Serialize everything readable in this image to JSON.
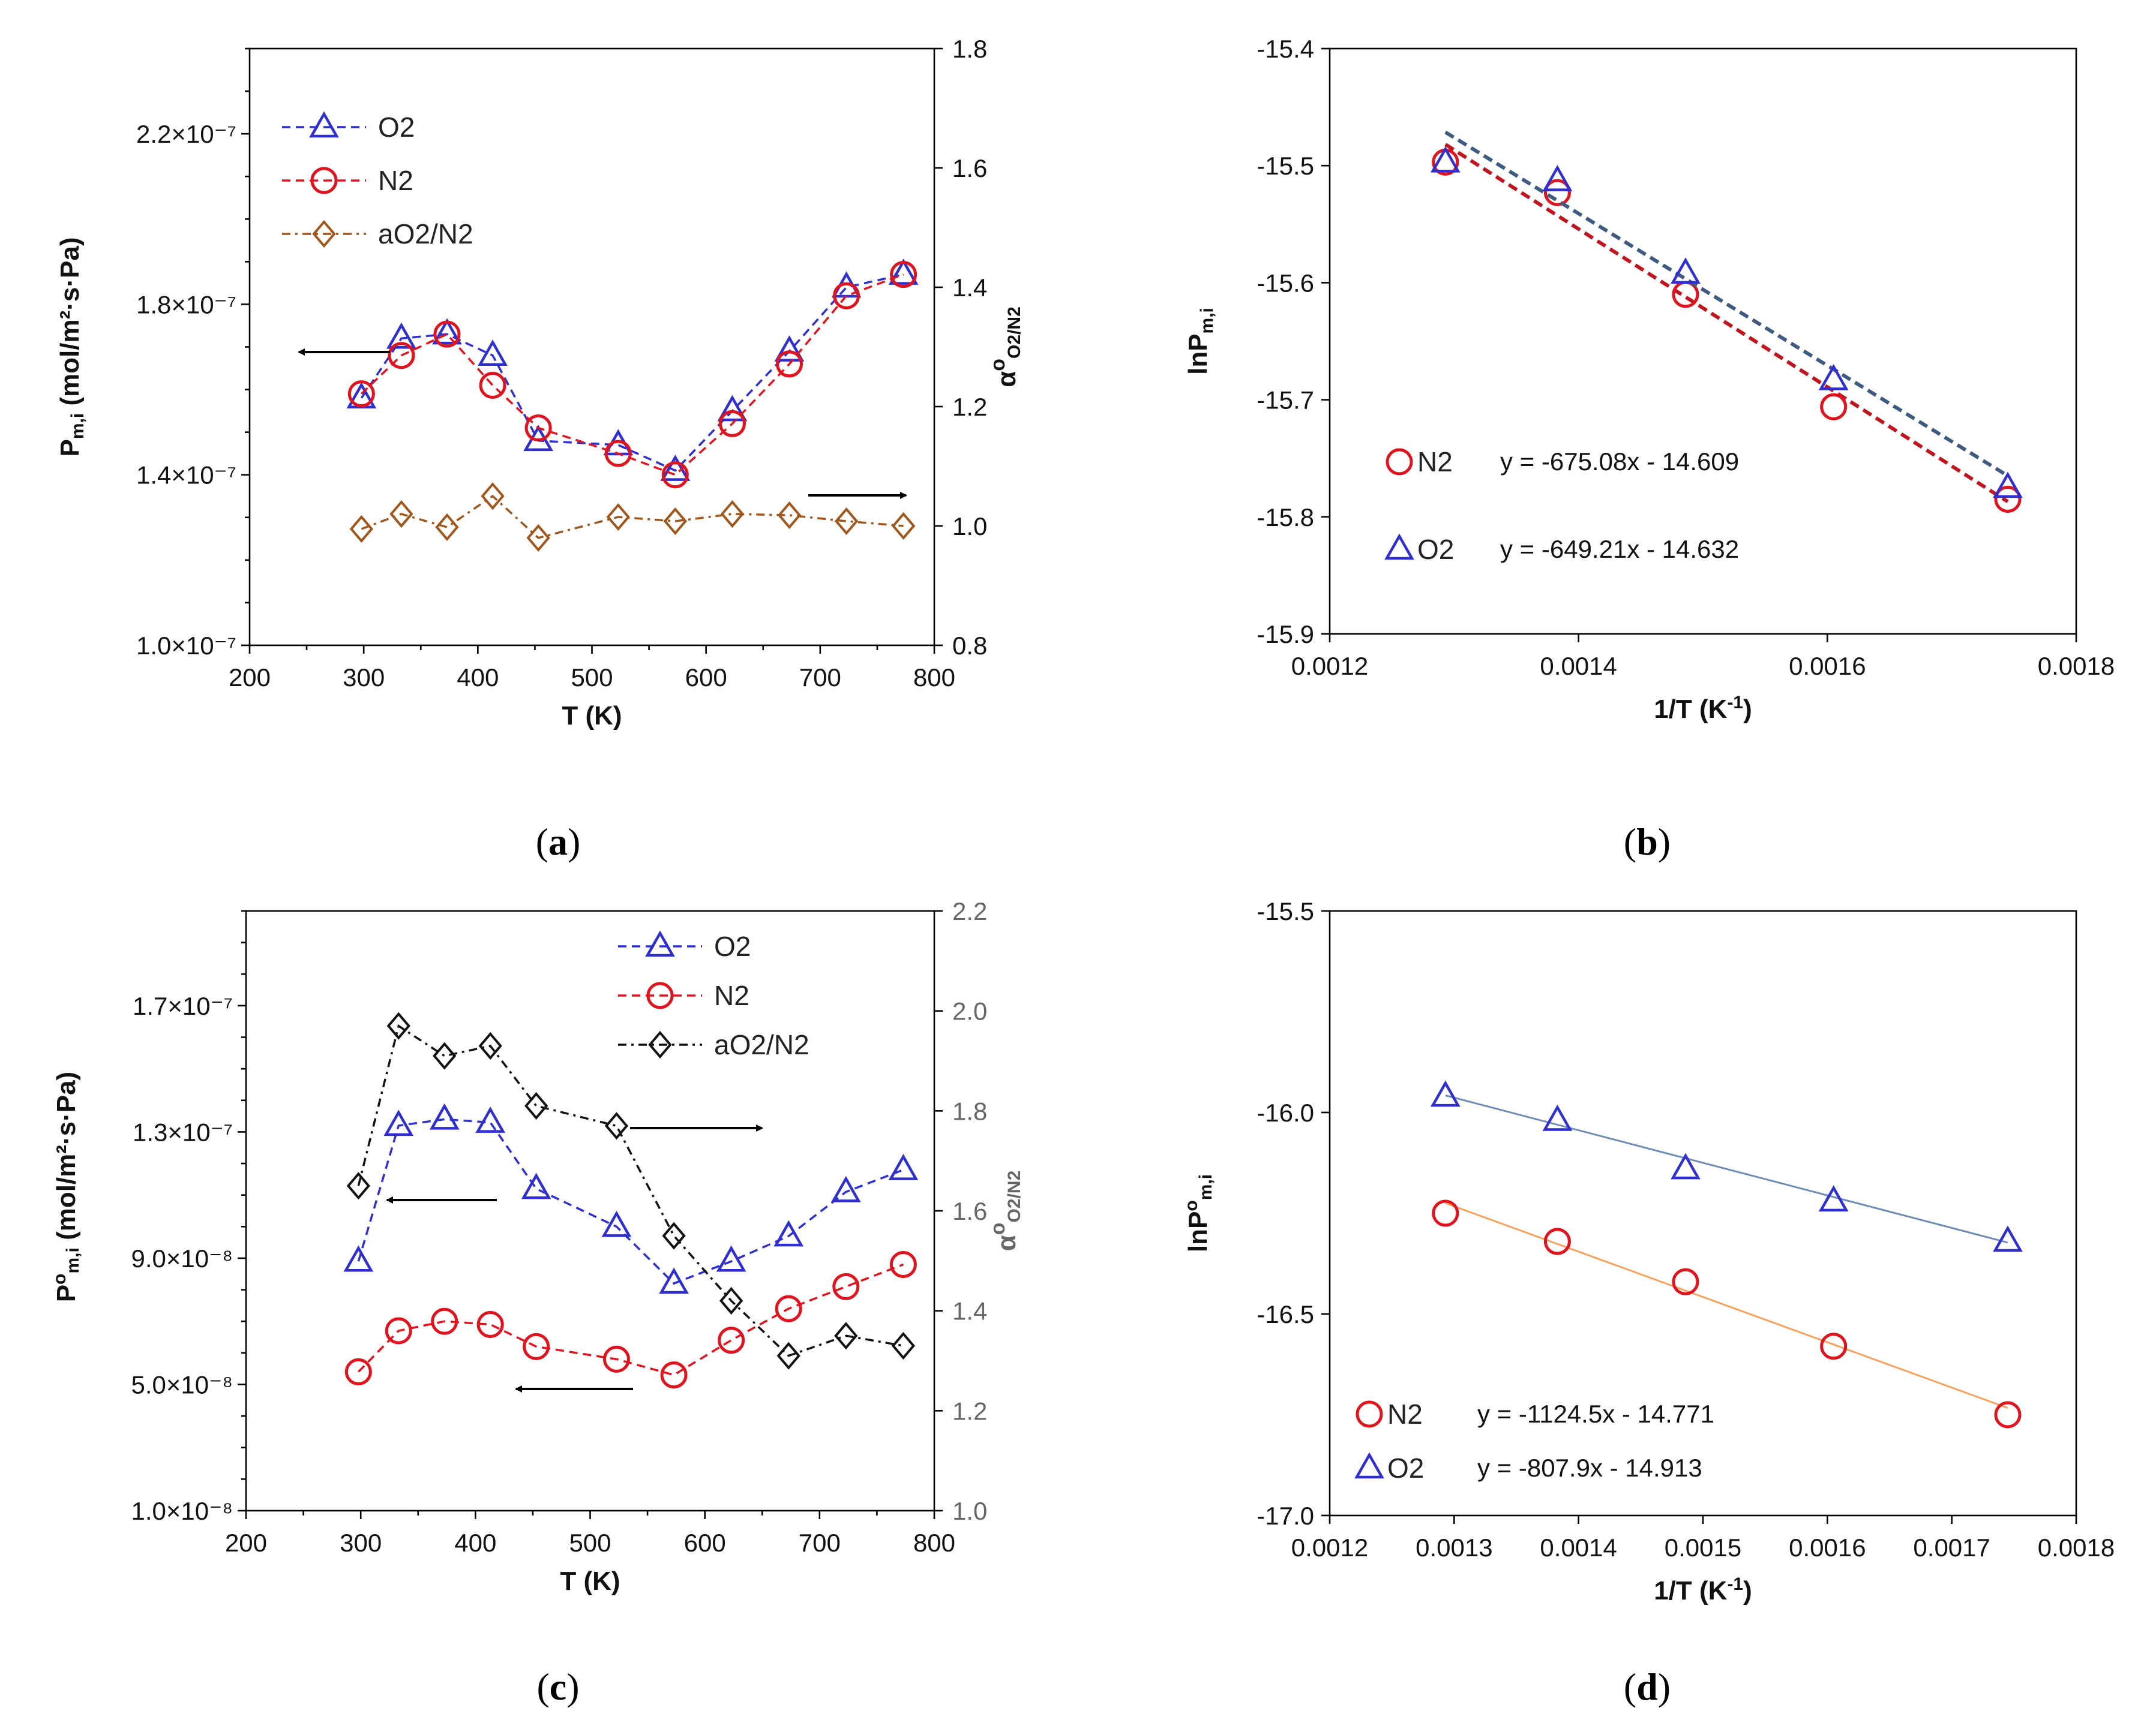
{
  "colors": {
    "o2": "#2f2fd0",
    "n2": "#e0141e",
    "alpha_a": "#a0561a",
    "alpha_c": "#111111",
    "fit_b_o2": "#3d5a80",
    "fit_b_n2": "#c0141e",
    "fit_d_o2": "#6e8db5",
    "fit_d_n2": "#f5a460"
  },
  "chart_data": [
    {
      "id": "a",
      "type": "line",
      "caption": "a",
      "xlabel": "T (K)",
      "xlim": [
        200,
        800
      ],
      "xticks": [
        200,
        300,
        400,
        500,
        600,
        700,
        800
      ],
      "ylabel_left": "P",
      "ylabel_left_sub": "m,i",
      "ylabel_left_unit": " (mol/m²·s·Pa)",
      "ylim_left": [
        1e-07,
        2.4e-07
      ],
      "yticks_left": [
        1e-07,
        1.4e-07,
        1.8e-07,
        2.2e-07
      ],
      "yticklabels_left": [
        "1.0×10⁻⁷",
        "1.4×10⁻⁷",
        "1.8×10⁻⁷",
        "2.2×10⁻⁷"
      ],
      "ylabel_right": "α",
      "ylabel_right_sup": "o",
      "ylabel_right_sub": "O2/N2",
      "ylim_right": [
        0.8,
        1.8
      ],
      "yticks_right": [
        0.8,
        1.0,
        1.2,
        1.4,
        1.6,
        1.8
      ],
      "yticklabels_right": [
        "0.8",
        "1.0",
        "1.2",
        "1.4",
        "1.6",
        "1.8"
      ],
      "x": [
        298,
        333,
        373,
        413,
        453,
        523,
        573,
        623,
        673,
        723,
        773
      ],
      "series": [
        {
          "name": "O2",
          "axis": "left",
          "marker": "triangle",
          "color": "o2",
          "values": [
            1.58e-07,
            1.72e-07,
            1.73e-07,
            1.68e-07,
            1.48e-07,
            1.47e-07,
            1.41e-07,
            1.55e-07,
            1.69e-07,
            1.84e-07,
            1.87e-07
          ]
        },
        {
          "name": "N2",
          "axis": "left",
          "marker": "circle",
          "color": "n2",
          "values": [
            1.59e-07,
            1.68e-07,
            1.73e-07,
            1.61e-07,
            1.51e-07,
            1.45e-07,
            1.4e-07,
            1.52e-07,
            1.66e-07,
            1.82e-07,
            1.87e-07
          ]
        },
        {
          "name": "aO2/N2",
          "axis": "right",
          "marker": "diamond",
          "color": "alpha_a",
          "values": [
            0.995,
            1.02,
            0.998,
            1.05,
            0.98,
            1.015,
            1.008,
            1.02,
            1.018,
            1.008,
            1.0
          ]
        }
      ],
      "annotations": [
        "arrow-left pointing to left axis",
        "arrow-right pointing to right axis"
      ]
    },
    {
      "id": "b",
      "type": "scatter",
      "caption": "b",
      "xlabel": "1/T (K",
      "xlabel_sup": "-1",
      "xlabel_end": ")",
      "xlim": [
        0.0012,
        0.0018
      ],
      "xticks": [
        0.0012,
        0.0014,
        0.0016,
        0.0018
      ],
      "xticklabels": [
        "0.0012",
        "0.0014",
        "0.0016",
        "0.0018"
      ],
      "ylabel": "lnP",
      "ylabel_sub": "m,i",
      "ylim": [
        -15.9,
        -15.4
      ],
      "yticks": [
        -15.9,
        -15.8,
        -15.7,
        -15.6,
        -15.5,
        -15.4
      ],
      "yticklabels": [
        "-15.9",
        "-15.8",
        "-15.7",
        "-15.6",
        "-15.5",
        "-15.4"
      ],
      "x": [
        0.001293,
        0.001383,
        0.001486,
        0.001605,
        0.001745
      ],
      "series": [
        {
          "name": "N2",
          "marker": "circle",
          "color": "n2",
          "values": [
            -15.497,
            -15.523,
            -15.61,
            -15.706,
            -15.785
          ],
          "fit": {
            "slope": -675.08,
            "intercept": -14.609,
            "color": "fit_b_n2",
            "equation": "y = -675.08x - 14.609"
          }
        },
        {
          "name": "O2",
          "marker": "triangle",
          "color": "o2",
          "values": [
            -15.497,
            -15.513,
            -15.592,
            -15.683,
            -15.775
          ],
          "fit": {
            "slope": -649.21,
            "intercept": -14.632,
            "color": "fit_b_o2",
            "equation": "y = -649.21x - 14.632"
          }
        }
      ]
    },
    {
      "id": "c",
      "type": "line",
      "caption": "c",
      "xlabel": "T (K)",
      "xlim": [
        200,
        800
      ],
      "xticks": [
        200,
        300,
        400,
        500,
        600,
        700,
        800
      ],
      "ylabel_left": "P",
      "ylabel_left_sup": "o",
      "ylabel_left_sub": "m,i",
      "ylabel_left_unit": " (mol/m²·s·Pa)",
      "ylim_left": [
        1e-08,
        2e-07
      ],
      "yticks_left": [
        1e-08,
        5e-08,
        9e-08,
        1.3e-07,
        1.7e-07
      ],
      "yticklabels_left": [
        "1.0×10⁻⁸",
        "5.0×10⁻⁸",
        "9.0×10⁻⁸",
        "1.3×10⁻⁷",
        "1.7×10⁻⁷"
      ],
      "ylabel_right": "α",
      "ylabel_right_sup": "o",
      "ylabel_right_sub": "O2/N2",
      "ylim_right": [
        1.0,
        2.2
      ],
      "yticks_right": [
        1.0,
        1.2,
        1.4,
        1.6,
        1.8,
        2.0,
        2.2
      ],
      "yticklabels_right": [
        "1.0",
        "1.2",
        "1.4",
        "1.6",
        "1.8",
        "2.0",
        "2.2"
      ],
      "x": [
        298,
        333,
        373,
        413,
        453,
        523,
        573,
        623,
        673,
        723,
        773
      ],
      "series": [
        {
          "name": "O2",
          "axis": "left",
          "marker": "triangle",
          "color": "o2",
          "values": [
            8.9e-08,
            1.32e-07,
            1.34e-07,
            1.33e-07,
            1.12e-07,
            1e-07,
            8.2e-08,
            8.9e-08,
            9.7e-08,
            1.11e-07,
            1.18e-07
          ]
        },
        {
          "name": "N2",
          "axis": "left",
          "marker": "circle",
          "color": "n2",
          "values": [
            5.4e-08,
            6.7e-08,
            7e-08,
            6.9e-08,
            6.2e-08,
            5.8e-08,
            5.3e-08,
            6.4e-08,
            7.4e-08,
            8.1e-08,
            8.8e-08
          ]
        },
        {
          "name": "aO2/N2",
          "axis": "right",
          "marker": "diamond",
          "color": "alpha_c",
          "values": [
            1.65,
            1.97,
            1.91,
            1.93,
            1.81,
            1.77,
            1.55,
            1.42,
            1.31,
            1.35,
            1.33
          ]
        }
      ],
      "annotations": [
        "arrow-left pointing to left axis",
        "arrow-left pointing to left axis",
        "arrow-right pointing to right axis"
      ]
    },
    {
      "id": "d",
      "type": "scatter",
      "caption": "d",
      "xlabel": "1/T (K",
      "xlabel_sup": "-1",
      "xlabel_end": ")",
      "xlim": [
        0.0012,
        0.0018
      ],
      "xticks": [
        0.0012,
        0.0013,
        0.0014,
        0.0015,
        0.0016,
        0.0017,
        0.0018
      ],
      "xticklabels": [
        "0.0012",
        "0.0013",
        "0.0014",
        "0.0015",
        "0.0016",
        "0.0017",
        "0.0018"
      ],
      "ylabel": "lnP",
      "ylabel_sup": "o",
      "ylabel_sub": "m,i",
      "ylim": [
        -17.0,
        -15.5
      ],
      "yticks": [
        -17.0,
        -16.5,
        -16.0,
        -15.5
      ],
      "yticklabels": [
        "-17.0",
        "-16.5",
        "-16.0",
        "-15.5"
      ],
      "x": [
        0.001293,
        0.001383,
        0.001486,
        0.001605,
        0.001745
      ],
      "series": [
        {
          "name": "N2",
          "marker": "circle",
          "color": "n2",
          "values": [
            -16.25,
            -16.32,
            -16.42,
            -16.58,
            -16.75
          ],
          "fit": {
            "slope": -1124.5,
            "intercept": -14.771,
            "color": "fit_d_n2",
            "equation": "y = -1124.5x - 14.771"
          }
        },
        {
          "name": "O2",
          "marker": "triangle",
          "color": "o2",
          "values": [
            -15.96,
            -16.02,
            -16.14,
            -16.22,
            -16.32
          ],
          "fit": {
            "slope": -807.9,
            "intercept": -14.913,
            "color": "fit_d_o2",
            "equation": "y = -807.9x - 14.913"
          }
        }
      ]
    }
  ]
}
